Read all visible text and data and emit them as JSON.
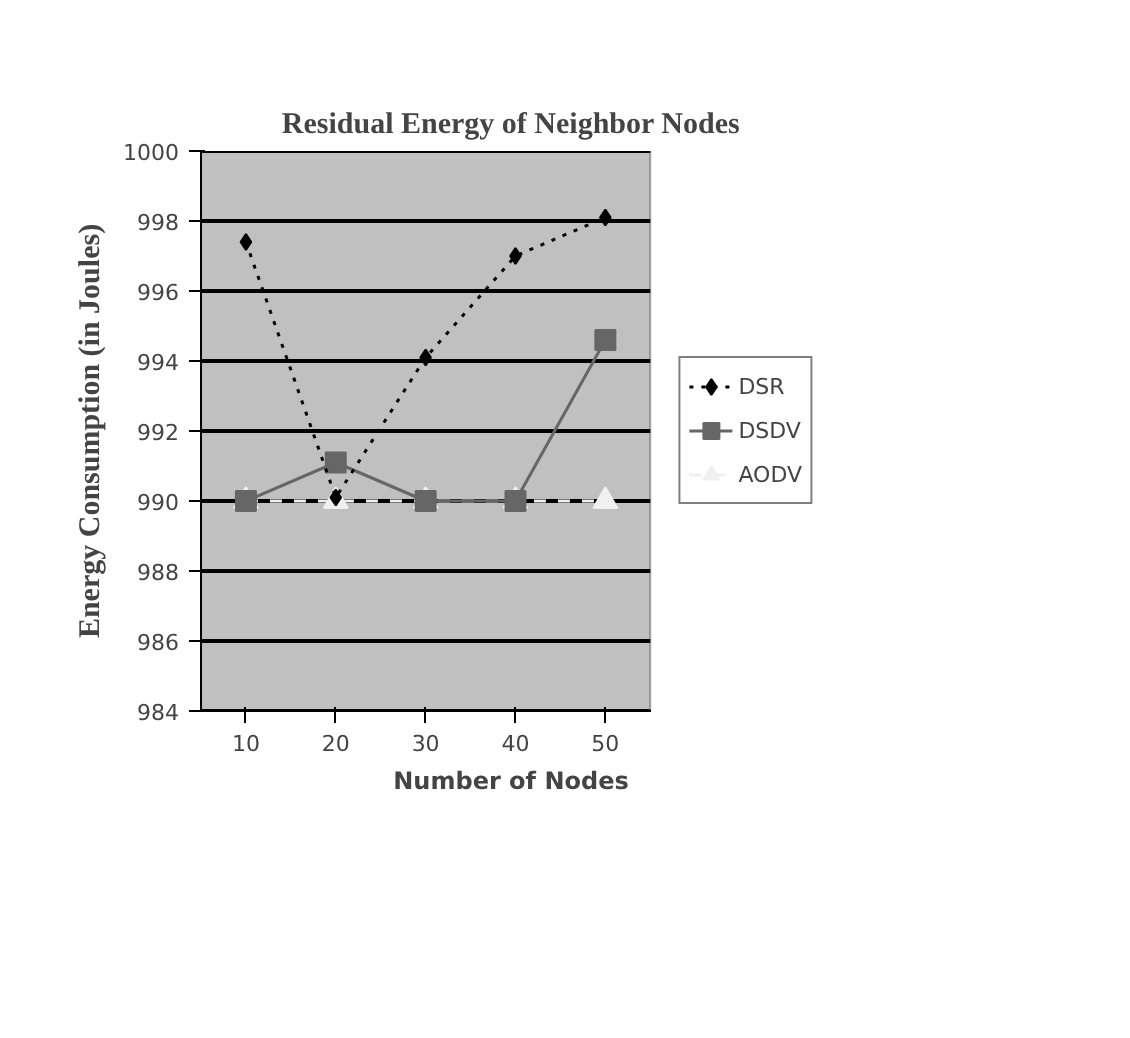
{
  "chart_data": {
    "type": "line",
    "title": "Residual Energy of Neighbor Nodes",
    "xlabel": "Number of Nodes",
    "ylabel": "Energy Consumption (in Joules)",
    "categories": [
      "10",
      "20",
      "30",
      "40",
      "50"
    ],
    "series": [
      {
        "name": "DSR",
        "color": "#000000",
        "marker": "diamond",
        "line_style": "dotted",
        "values": [
          997.4,
          990.1,
          994.1,
          997.0,
          998.1
        ]
      },
      {
        "name": "DSDV",
        "color": "#666666",
        "marker": "square",
        "line_style": "solid",
        "values": [
          990,
          991.1,
          990,
          990,
          994.6
        ]
      },
      {
        "name": "AODV",
        "color": "#f0f0f0",
        "marker": "triangle",
        "line_style": "dashed",
        "values": [
          990,
          990,
          990,
          990,
          990
        ]
      }
    ],
    "ylim": [
      984,
      1000
    ],
    "yticks": [
      984,
      986,
      988,
      990,
      992,
      994,
      996,
      998,
      1000
    ],
    "grid": "y",
    "legend": "right"
  }
}
